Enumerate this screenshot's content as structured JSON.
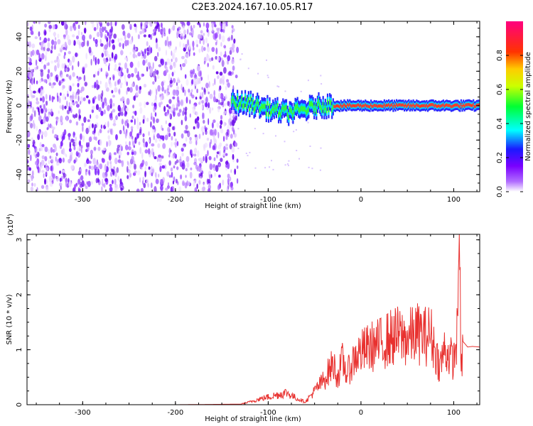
{
  "title": "C2E3.2024.167.10.05.R17",
  "chart_data": [
    {
      "type": "heatmap",
      "xlabel": "Height of straight line (km)",
      "ylabel": "Frequency (Hz)",
      "xlim": [
        -360,
        128
      ],
      "ylim": [
        -50,
        49
      ],
      "x_ticks": [
        -300,
        -200,
        -100,
        0,
        100
      ],
      "y_ticks": [
        -40,
        -20,
        0,
        20,
        40
      ],
      "colorbar": {
        "label": "Normalized spectral amplitude",
        "range": [
          0.0,
          1.0
        ],
        "ticks": [
          0.0,
          0.2,
          0.4,
          0.6,
          0.8
        ],
        "colormap": [
          "#ffffff",
          "#8b00ff",
          "#0000ff",
          "#00ffff",
          "#00ff00",
          "#ffff00",
          "#ff0000",
          "#ff0080"
        ]
      },
      "noise_region_x": [
        -360,
        -133
      ],
      "signal_track": [
        {
          "x": -140,
          "y": 2
        },
        {
          "x": -120,
          "y": 1
        },
        {
          "x": -100,
          "y": -2
        },
        {
          "x": -80,
          "y": -4
        },
        {
          "x": -60,
          "y": -2
        },
        {
          "x": -45,
          "y": 0
        },
        {
          "x": -30,
          "y": 0
        },
        {
          "x": 0,
          "y": 0
        },
        {
          "x": 50,
          "y": 0
        },
        {
          "x": 100,
          "y": 0
        },
        {
          "x": 128,
          "y": 0
        }
      ]
    },
    {
      "type": "line",
      "xlabel": "Height of straight line (km)",
      "ylabel": "SNR (10 * v/v)",
      "y_multiplier": "(x10",
      "y_multiplier_exp": "4",
      "xlim": [
        -360,
        128
      ],
      "ylim": [
        0,
        3.1
      ],
      "x_ticks": [
        -300,
        -200,
        -100,
        0,
        100
      ],
      "y_ticks": [
        0,
        1,
        2,
        3
      ],
      "series": [
        {
          "color": "#e8312f",
          "x": [
            -360,
            -300,
            -200,
            -130,
            -120,
            -110,
            -100,
            -90,
            -80,
            -70,
            -60,
            -50,
            -40,
            -35,
            -30,
            -25,
            -20,
            -15,
            -10,
            -5,
            0,
            10,
            20,
            30,
            40,
            50,
            60,
            70,
            75,
            80,
            85,
            90,
            95,
            100,
            104,
            106,
            108,
            110,
            115,
            120,
            128
          ],
          "y": [
            0.0,
            0.0,
            0.0,
            0.01,
            0.05,
            0.1,
            0.14,
            0.18,
            0.22,
            0.12,
            0.05,
            0.25,
            0.45,
            0.6,
            0.75,
            0.5,
            0.8,
            0.55,
            0.75,
            0.9,
            0.95,
            1.05,
            1.1,
            1.2,
            1.25,
            1.2,
            1.3,
            1.25,
            1.3,
            1.0,
            0.7,
            1.0,
            0.9,
            0.8,
            1.3,
            3.1,
            0.5,
            1.15,
            1.05,
            1.06,
            1.05
          ]
        }
      ]
    }
  ]
}
